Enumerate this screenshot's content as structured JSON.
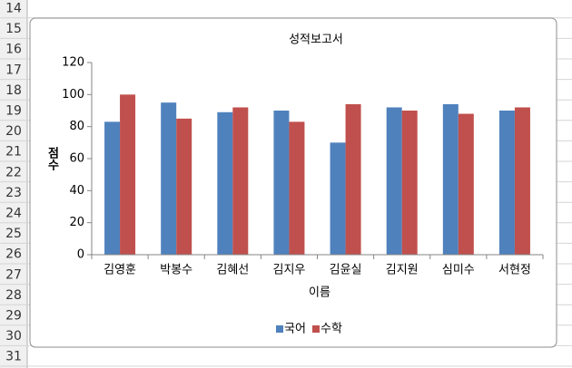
{
  "sheet": {
    "row_numbers": [
      14,
      15,
      16,
      17,
      18,
      19,
      20,
      21,
      22,
      23,
      24,
      25,
      26,
      27,
      28,
      29,
      30,
      31
    ]
  },
  "chart_data": {
    "type": "bar",
    "title": "성적보고서",
    "y_label": "점수",
    "x_label": "이름",
    "categories": [
      "김영훈",
      "박봉수",
      "김혜선",
      "김지우",
      "김윤실",
      "김지원",
      "심미수",
      "서현정"
    ],
    "series": [
      {
        "name": "국어",
        "color": "#4f81bd",
        "values": [
          83,
          95,
          89,
          90,
          70,
          92,
          94,
          90
        ]
      },
      {
        "name": "수학",
        "color": "#c0504d",
        "values": [
          100,
          85,
          92,
          83,
          94,
          90,
          88,
          92
        ]
      }
    ],
    "ylim": [
      0,
      120
    ],
    "yticks": [
      0,
      20,
      40,
      60,
      80,
      100,
      120
    ],
    "grid": false,
    "legend": "bottom"
  }
}
